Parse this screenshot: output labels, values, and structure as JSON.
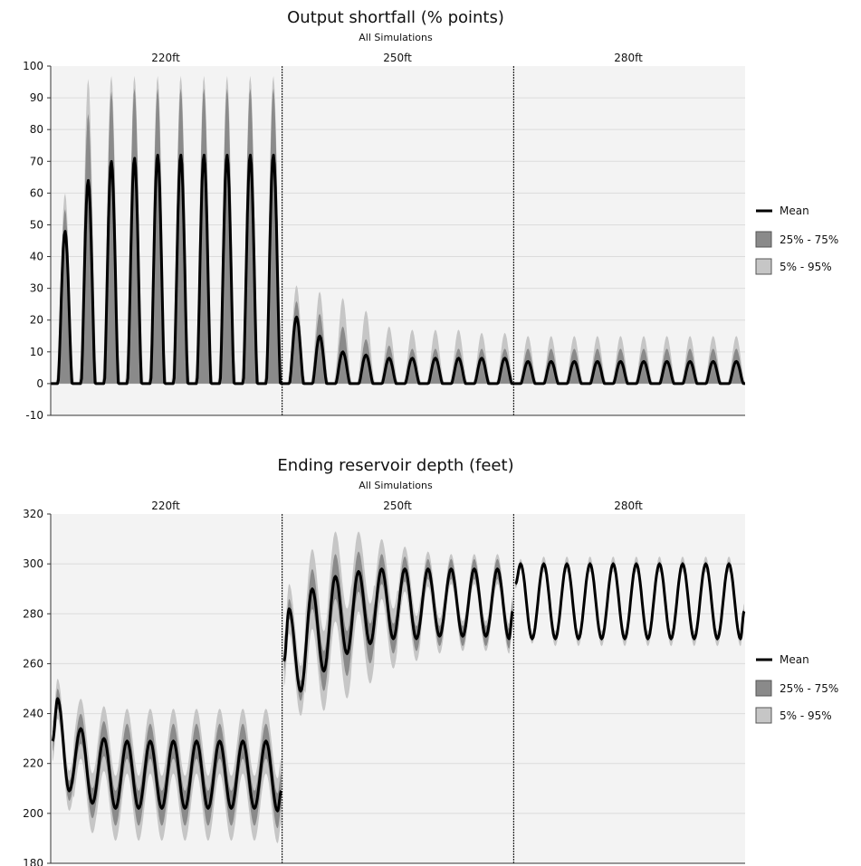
{
  "chart_data": [
    {
      "type": "area",
      "title": "Output shortfall (% points)",
      "subtitle": "All Simulations",
      "panels": [
        "220ft",
        "250ft",
        "280ft"
      ],
      "ylim": [
        -10,
        100
      ],
      "yticks": [
        "100",
        "90",
        "80",
        "70",
        "60",
        "50",
        "40",
        "30",
        "20",
        "10",
        "0",
        "-10"
      ],
      "yticks_values": [
        100,
        90,
        80,
        70,
        60,
        50,
        40,
        30,
        20,
        10,
        0,
        -10
      ],
      "grid": true,
      "legend": [
        "Mean",
        "25% - 75%",
        "5% - 95%"
      ],
      "legend_position": "right",
      "cycles_per_panel": 10,
      "series": [
        {
          "name": "Mean",
          "panel_peaks": [
            [
              48,
              64,
              70,
              71,
              72,
              72,
              72,
              72,
              72,
              72
            ],
            [
              21,
              15,
              10,
              9,
              8,
              8,
              8,
              8,
              8,
              8
            ],
            [
              7,
              7,
              7,
              7,
              7,
              7,
              7,
              7,
              7,
              7
            ]
          ],
          "baseline": 0
        },
        {
          "name": "25% - 75%",
          "panel_peaks": [
            [
              55,
              85,
              92,
              93,
              93,
              93,
              93,
              93,
              93,
              93
            ],
            [
              26,
              22,
              18,
              14,
              12,
              11,
              11,
              11,
              11,
              11
            ],
            [
              11,
              11,
              11,
              11,
              11,
              11,
              11,
              11,
              11,
              11
            ]
          ]
        },
        {
          "name": "5% - 95%",
          "panel_peaks": [
            [
              60,
              96,
              97,
              97,
              97,
              97,
              97,
              97,
              97,
              97
            ],
            [
              31,
              29,
              27,
              23,
              18,
              17,
              17,
              17,
              16,
              16
            ],
            [
              15,
              15,
              15,
              15,
              15,
              15,
              15,
              15,
              15,
              15
            ]
          ]
        }
      ]
    },
    {
      "type": "area",
      "title": "Ending reservoir depth (feet)",
      "subtitle": "All Simulations",
      "panels": [
        "220ft",
        "250ft",
        "280ft"
      ],
      "ylim": [
        180,
        320
      ],
      "yticks": [
        "320",
        "300",
        "280",
        "260",
        "240",
        "220",
        "200",
        "180"
      ],
      "yticks_values": [
        320,
        300,
        280,
        260,
        240,
        220,
        200,
        180
      ],
      "grid": true,
      "legend": [
        "Mean",
        "25% - 75%",
        "5% - 95%"
      ],
      "legend_position": "right",
      "cycles_per_panel": 10,
      "series": [
        {
          "name": "Mean",
          "panel_cycles": [
            {
              "start": 229,
              "peaks": [
                246,
                234,
                230,
                229,
                229,
                229,
                229,
                229,
                229,
                229
              ],
              "troughs": [
                209,
                204,
                202,
                202,
                202,
                202,
                202,
                202,
                202,
                201
              ],
              "end": 209
            },
            {
              "start": 261,
              "peaks": [
                282,
                290,
                295,
                297,
                298,
                298,
                298,
                298,
                298,
                298
              ],
              "troughs": [
                249,
                257,
                264,
                268,
                270,
                270,
                271,
                271,
                271,
                270
              ],
              "end": 281
            },
            {
              "start": 292,
              "peaks": [
                300,
                300,
                300,
                300,
                300,
                300,
                300,
                300,
                300,
                300
              ],
              "troughs": [
                270,
                270,
                270,
                270,
                270,
                270,
                270,
                270,
                270,
                270
              ],
              "end": 281
            }
          ]
        },
        {
          "name": "25% - 75%",
          "panel_spread": [
            [
              4,
              6,
              7,
              7,
              7,
              7,
              7,
              7,
              7,
              7
            ],
            [
              4,
              8,
              9,
              8,
              6,
              5,
              4,
              4,
              4,
              4
            ],
            [
              1,
              1,
              1,
              1,
              1,
              1,
              1,
              1,
              1,
              1
            ]
          ]
        },
        {
          "name": "5% - 95%",
          "panel_spread": [
            [
              8,
              12,
              13,
              13,
              13,
              13,
              13,
              13,
              13,
              13
            ],
            [
              10,
              16,
              18,
              16,
              12,
              9,
              7,
              6,
              6,
              6
            ],
            [
              2,
              3,
              3,
              3,
              3,
              3,
              3,
              3,
              3,
              3
            ]
          ]
        }
      ]
    }
  ],
  "colors": {
    "plot_bg": "#f3f3f3",
    "grid": "#dcdcdc",
    "mean": "#000000",
    "band_inner": "#8a8a8a",
    "band_outer": "#c6c6c6",
    "divider": "#000000"
  }
}
